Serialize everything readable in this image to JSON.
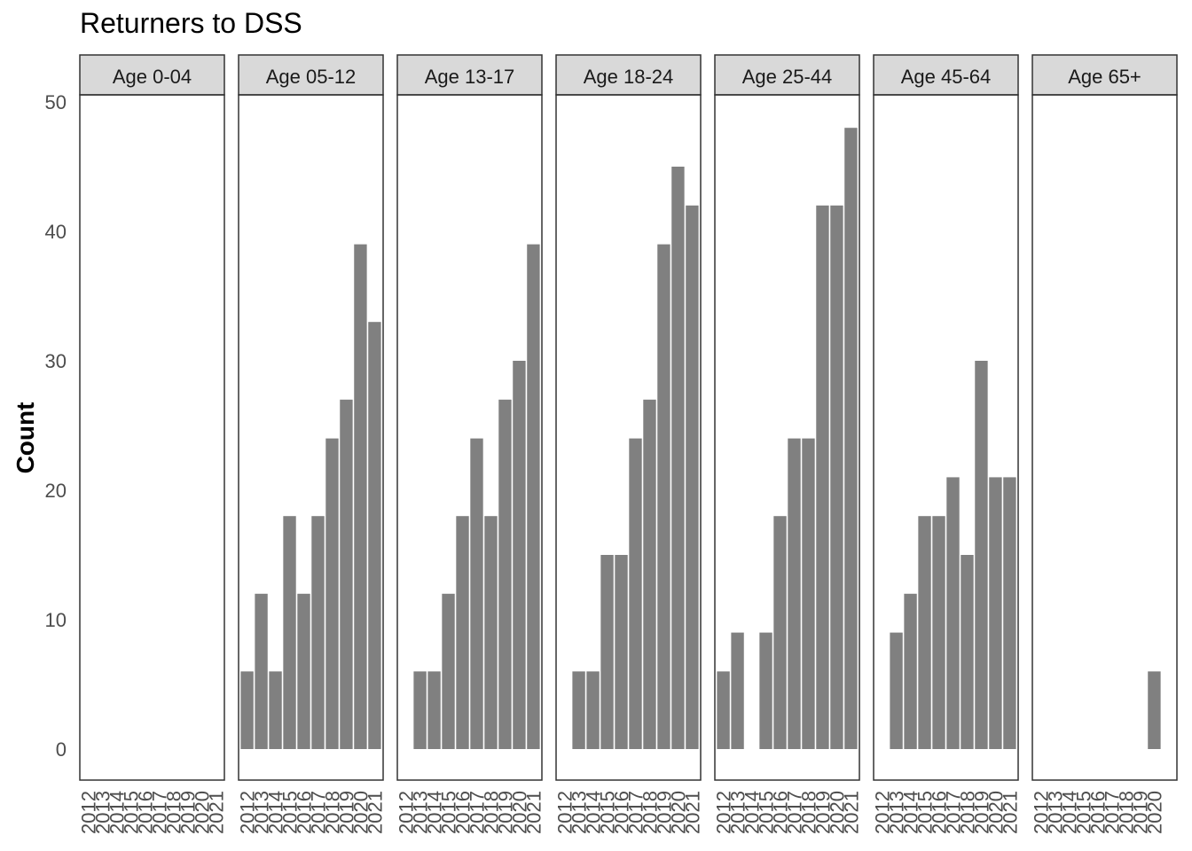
{
  "chart_data": {
    "type": "bar",
    "title": "Returners to DSS",
    "xlabel": "",
    "ylabel": "Count",
    "ylim": [
      0,
      50
    ],
    "y_ticks": [
      0,
      10,
      20,
      30,
      40,
      50
    ],
    "x_years": [
      "2012",
      "2013",
      "2014",
      "2015",
      "2016",
      "2017",
      "2018",
      "2019",
      "2020",
      "2021"
    ],
    "facet_by": "age group",
    "bar_color": "#808080",
    "strip_color": "#d9d9d9",
    "grid": false,
    "panels": [
      {
        "label": "Age 0-04",
        "x_ticks": [
          "2012",
          "2013",
          "2014",
          "2015",
          "2016",
          "2017",
          "2018",
          "2019",
          "2020",
          "2021"
        ],
        "values": [
          0,
          0,
          0,
          0,
          0,
          0,
          0,
          0,
          0,
          0
        ]
      },
      {
        "label": "Age 05-12",
        "x_ticks": [
          "2012",
          "2013",
          "2014",
          "2015",
          "2016",
          "2017",
          "2018",
          "2019",
          "2020",
          "2021"
        ],
        "values": [
          6,
          12,
          6,
          18,
          12,
          18,
          24,
          27,
          39,
          33
        ]
      },
      {
        "label": "Age 13-17",
        "x_ticks": [
          "2012",
          "2013",
          "2014",
          "2015",
          "2016",
          "2017",
          "2018",
          "2019",
          "2020",
          "2021"
        ],
        "values": [
          0,
          6,
          6,
          12,
          18,
          24,
          18,
          27,
          30,
          39
        ]
      },
      {
        "label": "Age 18-24",
        "x_ticks": [
          "2012",
          "2013",
          "2014",
          "2015",
          "2016",
          "2017",
          "2018",
          "2019",
          "2020",
          "2021"
        ],
        "values": [
          0,
          6,
          6,
          15,
          15,
          24,
          27,
          39,
          45,
          42
        ]
      },
      {
        "label": "Age 25-44",
        "x_ticks": [
          "2012",
          "2013",
          "2014",
          "2015",
          "2016",
          "2017",
          "2018",
          "2019",
          "2020",
          "2021"
        ],
        "values": [
          6,
          9,
          0,
          9,
          18,
          24,
          24,
          42,
          42,
          48
        ]
      },
      {
        "label": "Age 45-64",
        "x_ticks": [
          "2012",
          "2013",
          "2014",
          "2015",
          "2016",
          "2017",
          "2018",
          "2019",
          "2020",
          "2021"
        ],
        "values": [
          0,
          9,
          12,
          18,
          18,
          21,
          15,
          30,
          21,
          21
        ]
      },
      {
        "label": "Age 65+",
        "x_ticks": [
          "2012",
          "2013",
          "2014",
          "2015",
          "2016",
          "2017",
          "2018",
          "2019",
          "2020"
        ],
        "values": [
          0,
          0,
          0,
          0,
          0,
          0,
          0,
          0,
          6
        ]
      }
    ]
  }
}
